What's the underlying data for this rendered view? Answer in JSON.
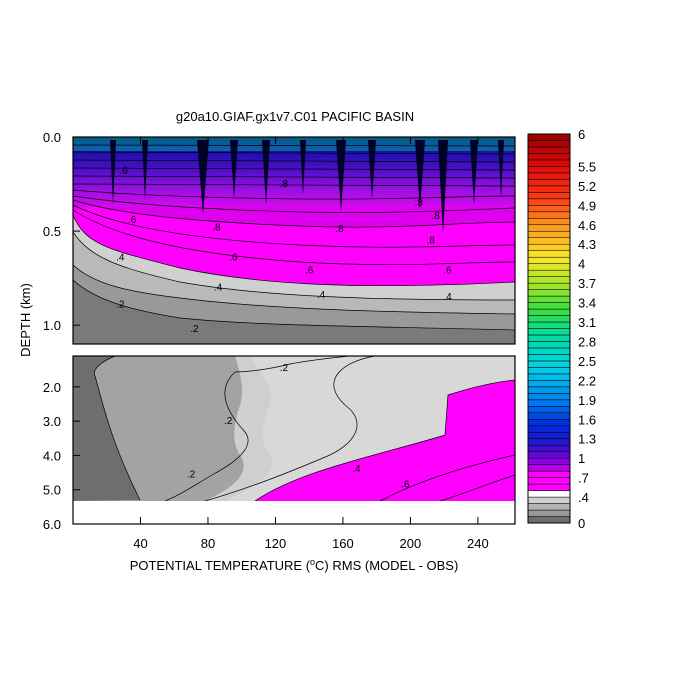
{
  "chart_data": {
    "type": "heatmap",
    "title": "g20a10.GIAF.gx1v7.C01 PACIFIC BASIN",
    "xlabel_prefix": "POTENTIAL TEMPERATURE (",
    "xlabel_unit": "o",
    "xlabel_suffix": "C) RMS (MODEL - OBS)",
    "ylabel": "DEPTH (km)",
    "x_ticks": [
      "40",
      "80",
      "120",
      "160",
      "200",
      "240"
    ],
    "x_tick_values": [
      40,
      80,
      120,
      160,
      200,
      240
    ],
    "xlim": [
      0,
      262
    ],
    "upper_panel": {
      "ylim": [
        0.0,
        1.1
      ],
      "y_ticks": [
        "0.0",
        "0.5",
        "1.0"
      ],
      "y_tick_values": [
        0.0,
        0.5,
        1.0
      ]
    },
    "lower_panel": {
      "ylim": [
        1.1,
        6.0
      ],
      "y_ticks": [
        "2.0",
        "3.0",
        "4.0",
        "5.0",
        "6.0"
      ],
      "y_tick_values": [
        2.0,
        3.0,
        4.0,
        5.0,
        6.0
      ]
    },
    "colorbar": {
      "labels": [
        "6",
        "5.5",
        "5.2",
        "4.9",
        "4.6",
        "4.3",
        "4",
        "3.7",
        "3.4",
        "3.1",
        "2.8",
        "2.5",
        "2.2",
        "1.9",
        "1.6",
        "1.3",
        "1",
        ".7",
        ".4",
        "0"
      ],
      "label_values": [
        6,
        5.5,
        5.2,
        4.9,
        4.6,
        4.3,
        4,
        3.7,
        3.4,
        3.1,
        2.8,
        2.5,
        2.2,
        1.9,
        1.6,
        1.3,
        1,
        0.7,
        0.4,
        0
      ],
      "levels": [
        0,
        0.1,
        0.2,
        0.3,
        0.4,
        0.5,
        0.6,
        0.7,
        0.8,
        0.9,
        1.0,
        1.1,
        1.2,
        1.3,
        1.4,
        1.5,
        1.6,
        1.7,
        1.8,
        1.9,
        2.0,
        2.1,
        2.2,
        2.3,
        2.4,
        2.5,
        2.6,
        2.7,
        2.8,
        2.9,
        3.0,
        3.1,
        3.2,
        3.3,
        3.4,
        3.5,
        3.6,
        3.7,
        3.8,
        3.9,
        4.0,
        4.1,
        4.2,
        4.3,
        4.4,
        4.5,
        4.6,
        4.7,
        4.8,
        4.9,
        5.0,
        5.1,
        5.2,
        5.3,
        5.4,
        5.5,
        5.6,
        5.7,
        5.8,
        5.9,
        6.0
      ],
      "colors_low": [
        "#6e6e6e",
        "#999999",
        "#b4b4b4",
        "#d0d0d0",
        "#ffffff",
        "#ff00ff"
      ]
    },
    "contour_labels_upper": [
      {
        "text": ".4",
        "x": 28,
        "y": 0.64
      },
      {
        "text": ".2",
        "x": 28,
        "y": 0.89
      },
      {
        "text": ".2",
        "x": 72,
        "y": 1.02
      },
      {
        "text": ".4",
        "x": 86,
        "y": 0.8
      },
      {
        "text": ".6",
        "x": 35,
        "y": 0.44
      },
      {
        "text": ".6",
        "x": 140,
        "y": 0.71
      },
      {
        "text": ".6",
        "x": 222,
        "y": 0.71
      },
      {
        "text": ".4",
        "x": 147,
        "y": 0.84
      },
      {
        "text": ".4",
        "x": 222,
        "y": 0.85
      },
      {
        "text": ".6",
        "x": 95,
        "y": 0.64
      },
      {
        "text": ".8",
        "x": 85,
        "y": 0.48
      },
      {
        "text": ".8",
        "x": 158,
        "y": 0.49
      },
      {
        "text": ".8",
        "x": 212,
        "y": 0.55
      },
      {
        "text": ".8",
        "x": 205,
        "y": 0.35
      },
      {
        "text": ".8",
        "x": 125,
        "y": 0.25
      },
      {
        "text": ".6",
        "x": 30,
        "y": 0.18
      },
      {
        "text": ".8",
        "x": 215,
        "y": 0.42
      }
    ],
    "contour_labels_lower": [
      {
        "text": ".2",
        "x": 125,
        "y": 1.45
      },
      {
        "text": ".2",
        "x": 92,
        "y": 3.0
      },
      {
        "text": ".2",
        "x": 70,
        "y": 4.55
      },
      {
        "text": ".4",
        "x": 168,
        "y": 4.4
      },
      {
        "text": ".6",
        "x": 197,
        "y": 4.85
      }
    ],
    "legend_position": "right"
  }
}
